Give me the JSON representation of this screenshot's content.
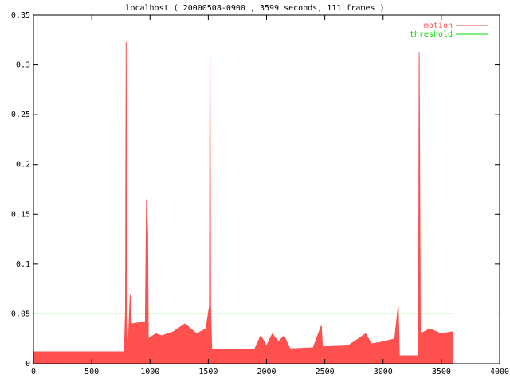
{
  "chart_data": {
    "type": "impulses",
    "title": "localhost ( 20000508-0900 , 3599 seconds, 111 frames )",
    "legend": "top right",
    "grid": false,
    "xlim": [
      0,
      4000
    ],
    "xticks": [
      0,
      500,
      1000,
      1500,
      2000,
      2500,
      3000,
      3500,
      4000
    ],
    "ylim": [
      0,
      0.35
    ],
    "yticks": [
      0,
      0.05,
      0.1,
      0.15,
      0.2,
      0.25,
      0.3,
      0.35
    ],
    "series": [
      {
        "name": "motion",
        "color": "#ff5050",
        "style": "impulses",
        "x": [
          0,
          100,
          300,
          500,
          700,
          780,
          790,
          795,
          800,
          810,
          830,
          840,
          900,
          960,
          970,
          980,
          985,
          1050,
          1100,
          1200,
          1300,
          1400,
          1480,
          1510,
          1515,
          1520,
          1530,
          1700,
          1900,
          1950,
          2000,
          2050,
          2100,
          2150,
          2200,
          2400,
          2470,
          2480,
          2700,
          2850,
          2900,
          3000,
          3100,
          3130,
          3140,
          3300,
          3305,
          3310,
          3320,
          3400,
          3500,
          3590,
          3599
        ],
        "values": [
          0.012,
          0.012,
          0.012,
          0.012,
          0.012,
          0.012,
          0.055,
          0.323,
          0.068,
          0.01,
          0.069,
          0.04,
          0.041,
          0.042,
          0.165,
          0.13,
          0.025,
          0.03,
          0.028,
          0.032,
          0.04,
          0.03,
          0.035,
          0.058,
          0.311,
          0.055,
          0.014,
          0.014,
          0.015,
          0.028,
          0.018,
          0.03,
          0.022,
          0.028,
          0.015,
          0.016,
          0.038,
          0.017,
          0.018,
          0.03,
          0.02,
          0.022,
          0.025,
          0.058,
          0.008,
          0.008,
          0.058,
          0.313,
          0.03,
          0.035,
          0.03,
          0.032,
          0.03
        ]
      },
      {
        "name": "threshold",
        "color": "#00dd00",
        "style": "line",
        "x": [
          0,
          3599
        ],
        "values": [
          0.05,
          0.05
        ]
      }
    ]
  }
}
